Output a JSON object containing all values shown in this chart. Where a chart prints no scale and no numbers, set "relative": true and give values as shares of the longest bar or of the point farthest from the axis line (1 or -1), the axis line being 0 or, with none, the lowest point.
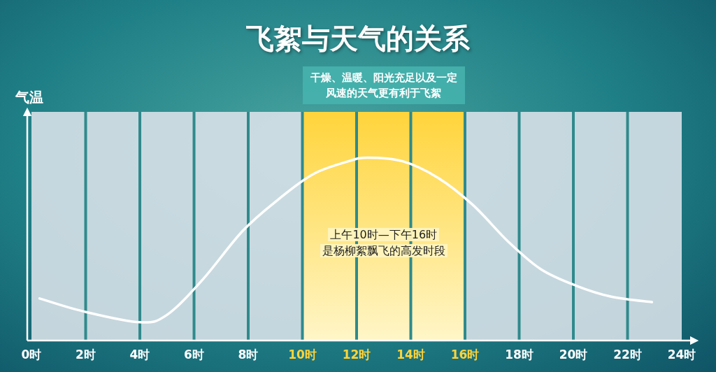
{
  "chart_data": {
    "type": "line",
    "title": "飞絮与天气的关系",
    "ylabel": "气温",
    "relative": true,
    "grid": "x",
    "xlim": [
      0,
      24
    ],
    "xticks": [
      {
        "value": 0,
        "label": "0时"
      },
      {
        "value": 2,
        "label": "2时"
      },
      {
        "value": 4,
        "label": "4时"
      },
      {
        "value": 6,
        "label": "6时"
      },
      {
        "value": 8,
        "label": "8时"
      },
      {
        "value": 10,
        "label": "10时"
      },
      {
        "value": 12,
        "label": "12时"
      },
      {
        "value": 14,
        "label": "14时"
      },
      {
        "value": 16,
        "label": "16时"
      },
      {
        "value": 18,
        "label": "18时"
      },
      {
        "value": 20,
        "label": "20时"
      },
      {
        "value": 22,
        "label": "22时"
      },
      {
        "value": 24,
        "label": "24时"
      }
    ],
    "bands": [
      {
        "axis": "x",
        "from": 10,
        "to": 16,
        "label": "干燥、温暖、阳光充足以及一定风速的天气更有利于飞絮",
        "color": "#ffd43b"
      }
    ],
    "annotations": [
      "上午10时—下午16时",
      "是杨柳絮飘飞的高发时段"
    ],
    "series": [
      {
        "color": "#ffffff",
        "x": [
          0.3,
          1.9,
          4.0,
          5.0,
          6.3,
          7.8,
          9.1,
          10.4,
          11.7,
          12.4,
          13.7,
          15.0,
          16.3,
          17.6,
          18.8,
          20.1,
          21.4,
          22.9
        ],
        "values": [
          0.23,
          0.16,
          0.1,
          0.14,
          0.33,
          0.6,
          0.77,
          0.91,
          0.98,
          1.0,
          0.98,
          0.89,
          0.74,
          0.54,
          0.39,
          0.3,
          0.24,
          0.21
        ]
      }
    ]
  }
}
